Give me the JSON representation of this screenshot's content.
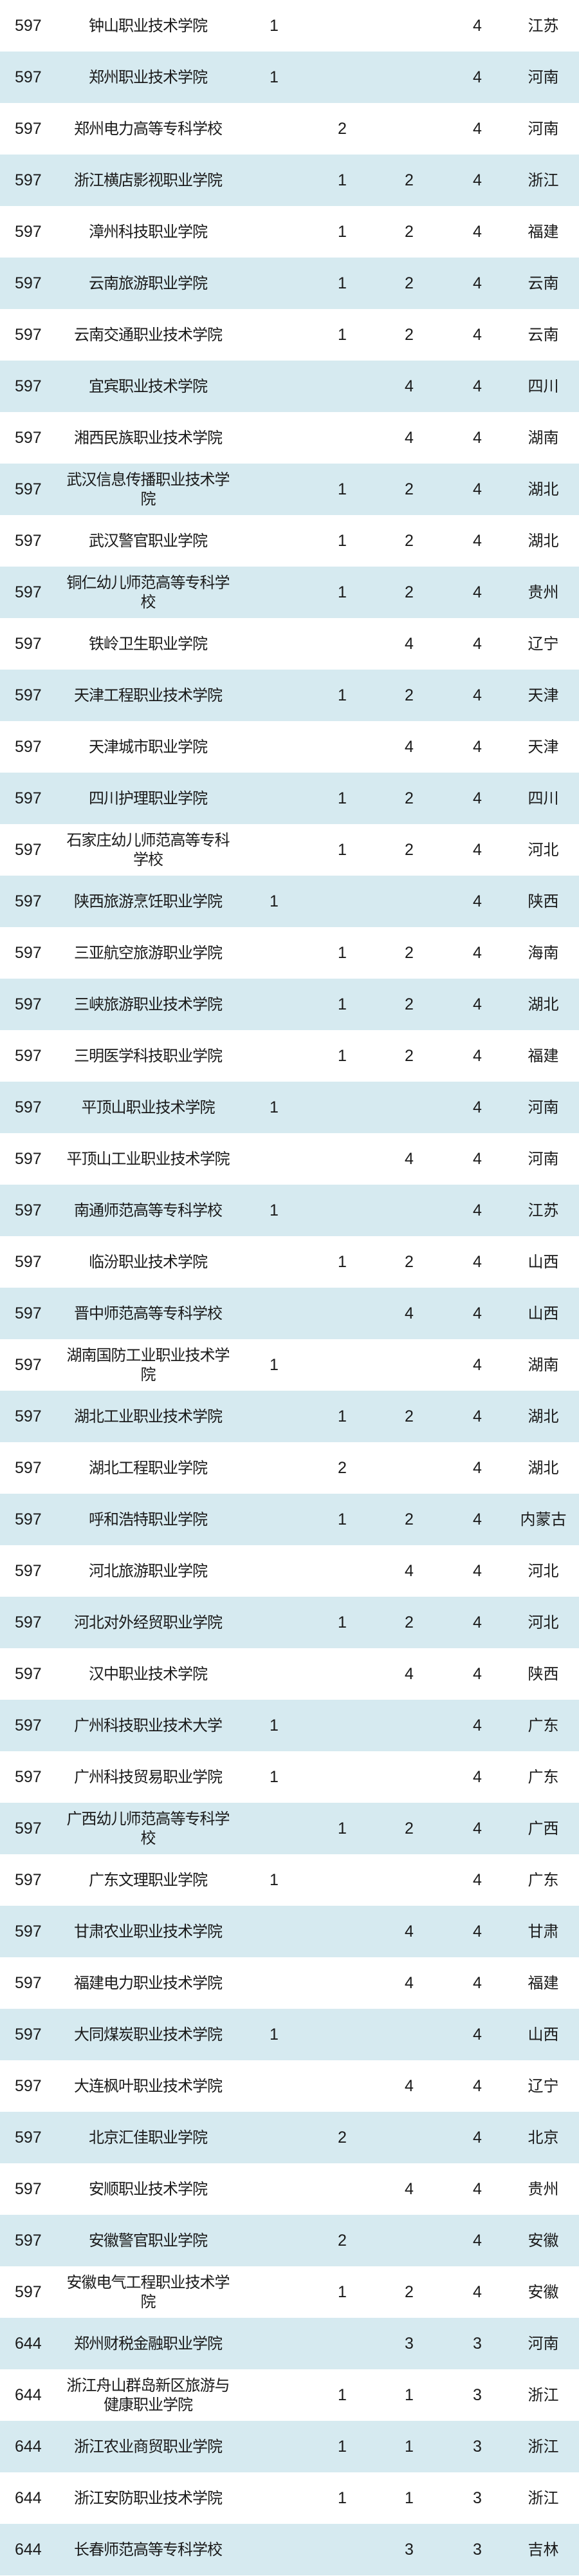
{
  "table": {
    "rows": [
      {
        "rank": "597",
        "name": "钟山职业技术学院",
        "a": "1",
        "b": "",
        "c": "",
        "d": "4",
        "province": "江苏"
      },
      {
        "rank": "597",
        "name": "郑州职业技术学院",
        "a": "1",
        "b": "",
        "c": "",
        "d": "4",
        "province": "河南"
      },
      {
        "rank": "597",
        "name": "郑州电力高等专科学校",
        "a": "",
        "b": "2",
        "c": "",
        "d": "4",
        "province": "河南"
      },
      {
        "rank": "597",
        "name": "浙江横店影视职业学院",
        "a": "",
        "b": "1",
        "c": "2",
        "d": "4",
        "province": "浙江"
      },
      {
        "rank": "597",
        "name": "漳州科技职业学院",
        "a": "",
        "b": "1",
        "c": "2",
        "d": "4",
        "province": "福建"
      },
      {
        "rank": "597",
        "name": "云南旅游职业学院",
        "a": "",
        "b": "1",
        "c": "2",
        "d": "4",
        "province": "云南"
      },
      {
        "rank": "597",
        "name": "云南交通职业技术学院",
        "a": "",
        "b": "1",
        "c": "2",
        "d": "4",
        "province": "云南"
      },
      {
        "rank": "597",
        "name": "宜宾职业技术学院",
        "a": "",
        "b": "",
        "c": "4",
        "d": "4",
        "province": "四川"
      },
      {
        "rank": "597",
        "name": "湘西民族职业技术学院",
        "a": "",
        "b": "",
        "c": "4",
        "d": "4",
        "province": "湖南"
      },
      {
        "rank": "597",
        "name": "武汉信息传播职业技术学院",
        "a": "",
        "b": "1",
        "c": "2",
        "d": "4",
        "province": "湖北"
      },
      {
        "rank": "597",
        "name": "武汉警官职业学院",
        "a": "",
        "b": "1",
        "c": "2",
        "d": "4",
        "province": "湖北"
      },
      {
        "rank": "597",
        "name": "铜仁幼儿师范高等专科学校",
        "a": "",
        "b": "1",
        "c": "2",
        "d": "4",
        "province": "贵州"
      },
      {
        "rank": "597",
        "name": "铁岭卫生职业学院",
        "a": "",
        "b": "",
        "c": "4",
        "d": "4",
        "province": "辽宁"
      },
      {
        "rank": "597",
        "name": "天津工程职业技术学院",
        "a": "",
        "b": "1",
        "c": "2",
        "d": "4",
        "province": "天津"
      },
      {
        "rank": "597",
        "name": "天津城市职业学院",
        "a": "",
        "b": "",
        "c": "4",
        "d": "4",
        "province": "天津"
      },
      {
        "rank": "597",
        "name": "四川护理职业学院",
        "a": "",
        "b": "1",
        "c": "2",
        "d": "4",
        "province": "四川"
      },
      {
        "rank": "597",
        "name": "石家庄幼儿师范高等专科学校",
        "a": "",
        "b": "1",
        "c": "2",
        "d": "4",
        "province": "河北"
      },
      {
        "rank": "597",
        "name": "陕西旅游烹饪职业学院",
        "a": "1",
        "b": "",
        "c": "",
        "d": "4",
        "province": "陕西"
      },
      {
        "rank": "597",
        "name": "三亚航空旅游职业学院",
        "a": "",
        "b": "1",
        "c": "2",
        "d": "4",
        "province": "海南"
      },
      {
        "rank": "597",
        "name": "三峡旅游职业技术学院",
        "a": "",
        "b": "1",
        "c": "2",
        "d": "4",
        "province": "湖北"
      },
      {
        "rank": "597",
        "name": "三明医学科技职业学院",
        "a": "",
        "b": "1",
        "c": "2",
        "d": "4",
        "province": "福建"
      },
      {
        "rank": "597",
        "name": "平顶山职业技术学院",
        "a": "1",
        "b": "",
        "c": "",
        "d": "4",
        "province": "河南"
      },
      {
        "rank": "597",
        "name": "平顶山工业职业技术学院",
        "a": "",
        "b": "",
        "c": "4",
        "d": "4",
        "province": "河南"
      },
      {
        "rank": "597",
        "name": "南通师范高等专科学校",
        "a": "1",
        "b": "",
        "c": "",
        "d": "4",
        "province": "江苏"
      },
      {
        "rank": "597",
        "name": "临汾职业技术学院",
        "a": "",
        "b": "1",
        "c": "2",
        "d": "4",
        "province": "山西"
      },
      {
        "rank": "597",
        "name": "晋中师范高等专科学校",
        "a": "",
        "b": "",
        "c": "4",
        "d": "4",
        "province": "山西"
      },
      {
        "rank": "597",
        "name": "湖南国防工业职业技术学院",
        "a": "1",
        "b": "",
        "c": "",
        "d": "4",
        "province": "湖南"
      },
      {
        "rank": "597",
        "name": "湖北工业职业技术学院",
        "a": "",
        "b": "1",
        "c": "2",
        "d": "4",
        "province": "湖北"
      },
      {
        "rank": "597",
        "name": "湖北工程职业学院",
        "a": "",
        "b": "2",
        "c": "",
        "d": "4",
        "province": "湖北"
      },
      {
        "rank": "597",
        "name": "呼和浩特职业学院",
        "a": "",
        "b": "1",
        "c": "2",
        "d": "4",
        "province": "内蒙古"
      },
      {
        "rank": "597",
        "name": "河北旅游职业学院",
        "a": "",
        "b": "",
        "c": "4",
        "d": "4",
        "province": "河北"
      },
      {
        "rank": "597",
        "name": "河北对外经贸职业学院",
        "a": "",
        "b": "1",
        "c": "2",
        "d": "4",
        "province": "河北"
      },
      {
        "rank": "597",
        "name": "汉中职业技术学院",
        "a": "",
        "b": "",
        "c": "4",
        "d": "4",
        "province": "陕西"
      },
      {
        "rank": "597",
        "name": "广州科技职业技术大学",
        "a": "1",
        "b": "",
        "c": "",
        "d": "4",
        "province": "广东"
      },
      {
        "rank": "597",
        "name": "广州科技贸易职业学院",
        "a": "1",
        "b": "",
        "c": "",
        "d": "4",
        "province": "广东"
      },
      {
        "rank": "597",
        "name": "广西幼儿师范高等专科学校",
        "a": "",
        "b": "1",
        "c": "2",
        "d": "4",
        "province": "广西"
      },
      {
        "rank": "597",
        "name": "广东文理职业学院",
        "a": "1",
        "b": "",
        "c": "",
        "d": "4",
        "province": "广东"
      },
      {
        "rank": "597",
        "name": "甘肃农业职业技术学院",
        "a": "",
        "b": "",
        "c": "4",
        "d": "4",
        "province": "甘肃"
      },
      {
        "rank": "597",
        "name": "福建电力职业技术学院",
        "a": "",
        "b": "",
        "c": "4",
        "d": "4",
        "province": "福建"
      },
      {
        "rank": "597",
        "name": "大同煤炭职业技术学院",
        "a": "1",
        "b": "",
        "c": "",
        "d": "4",
        "province": "山西"
      },
      {
        "rank": "597",
        "name": "大连枫叶职业技术学院",
        "a": "",
        "b": "",
        "c": "4",
        "d": "4",
        "province": "辽宁"
      },
      {
        "rank": "597",
        "name": "北京汇佳职业学院",
        "a": "",
        "b": "2",
        "c": "",
        "d": "4",
        "province": "北京"
      },
      {
        "rank": "597",
        "name": "安顺职业技术学院",
        "a": "",
        "b": "",
        "c": "4",
        "d": "4",
        "province": "贵州"
      },
      {
        "rank": "597",
        "name": "安徽警官职业学院",
        "a": "",
        "b": "2",
        "c": "",
        "d": "4",
        "province": "安徽"
      },
      {
        "rank": "597",
        "name": "安徽电气工程职业技术学院",
        "a": "",
        "b": "1",
        "c": "2",
        "d": "4",
        "province": "安徽"
      },
      {
        "rank": "644",
        "name": "郑州财税金融职业学院",
        "a": "",
        "b": "",
        "c": "3",
        "d": "3",
        "province": "河南"
      },
      {
        "rank": "644",
        "name": "浙江舟山群岛新区旅游与健康职业学院",
        "a": "",
        "b": "1",
        "c": "1",
        "d": "3",
        "province": "浙江"
      },
      {
        "rank": "644",
        "name": "浙江农业商贸职业学院",
        "a": "",
        "b": "1",
        "c": "1",
        "d": "3",
        "province": "浙江"
      },
      {
        "rank": "644",
        "name": "浙江安防职业技术学院",
        "a": "",
        "b": "1",
        "c": "1",
        "d": "3",
        "province": "浙江"
      },
      {
        "rank": "644",
        "name": "长春师范高等专科学校",
        "a": "",
        "b": "",
        "c": "3",
        "d": "3",
        "province": "吉林"
      }
    ]
  },
  "colors": {
    "band": "#d6eaf0",
    "text": "#1a1a1a"
  }
}
